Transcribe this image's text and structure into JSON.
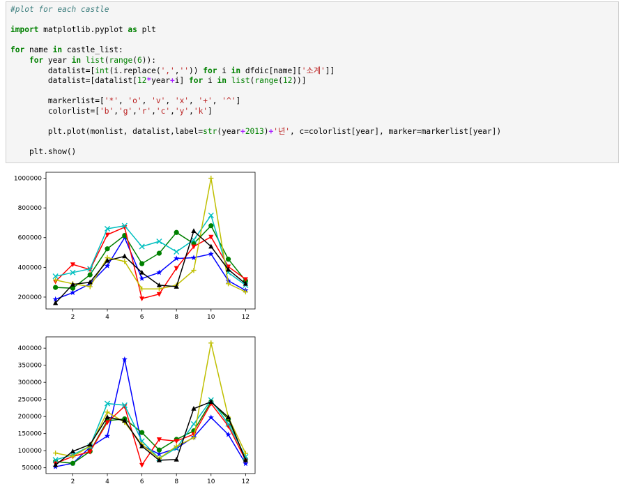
{
  "code_cell": {
    "lines": [
      [
        {
          "t": "#plot for each castle",
          "c": "cm"
        }
      ],
      [],
      [
        {
          "t": "import",
          "c": "kw"
        },
        {
          "t": " matplotlib.pyplot "
        },
        {
          "t": "as",
          "c": "kw"
        },
        {
          "t": " plt"
        }
      ],
      [],
      [
        {
          "t": "for",
          "c": "kw"
        },
        {
          "t": " name "
        },
        {
          "t": "in",
          "c": "kw"
        },
        {
          "t": " castle_list:"
        }
      ],
      [
        {
          "t": "    "
        },
        {
          "t": "for",
          "c": "kw"
        },
        {
          "t": " year "
        },
        {
          "t": "in",
          "c": "kw"
        },
        {
          "t": " "
        },
        {
          "t": "list",
          "c": "bi"
        },
        {
          "t": "("
        },
        {
          "t": "range",
          "c": "bi"
        },
        {
          "t": "("
        },
        {
          "t": "6",
          "c": "nm"
        },
        {
          "t": ")):"
        }
      ],
      [
        {
          "t": "        datalist=["
        },
        {
          "t": "int",
          "c": "bi"
        },
        {
          "t": "(i.replace("
        },
        {
          "t": "','",
          "c": "st"
        },
        {
          "t": ","
        },
        {
          "t": "''",
          "c": "st"
        },
        {
          "t": ")) "
        },
        {
          "t": "for",
          "c": "kw"
        },
        {
          "t": " i "
        },
        {
          "t": "in",
          "c": "kw"
        },
        {
          "t": " dfdic[name]["
        },
        {
          "t": "'소계'",
          "c": "st"
        },
        {
          "t": "]]"
        }
      ],
      [
        {
          "t": "        datalist=[datalist["
        },
        {
          "t": "12",
          "c": "nm"
        },
        {
          "t": "*",
          "c": "op"
        },
        {
          "t": "year"
        },
        {
          "t": "+",
          "c": "op"
        },
        {
          "t": "i] "
        },
        {
          "t": "for",
          "c": "kw"
        },
        {
          "t": " i "
        },
        {
          "t": "in",
          "c": "kw"
        },
        {
          "t": " "
        },
        {
          "t": "list",
          "c": "bi"
        },
        {
          "t": "("
        },
        {
          "t": "range",
          "c": "bi"
        },
        {
          "t": "("
        },
        {
          "t": "12",
          "c": "nm"
        },
        {
          "t": "))]"
        }
      ],
      [],
      [
        {
          "t": "        markerlist=["
        },
        {
          "t": "'*'",
          "c": "st"
        },
        {
          "t": ", "
        },
        {
          "t": "'o'",
          "c": "st"
        },
        {
          "t": ", "
        },
        {
          "t": "'v'",
          "c": "st"
        },
        {
          "t": ", "
        },
        {
          "t": "'x'",
          "c": "st"
        },
        {
          "t": ", "
        },
        {
          "t": "'+'",
          "c": "st"
        },
        {
          "t": ", "
        },
        {
          "t": "'^'",
          "c": "st"
        },
        {
          "t": "]"
        }
      ],
      [
        {
          "t": "        colorlist=["
        },
        {
          "t": "'b'",
          "c": "st"
        },
        {
          "t": ","
        },
        {
          "t": "'g'",
          "c": "st"
        },
        {
          "t": ","
        },
        {
          "t": "'r'",
          "c": "st"
        },
        {
          "t": ","
        },
        {
          "t": "'c'",
          "c": "st"
        },
        {
          "t": ","
        },
        {
          "t": "'y'",
          "c": "st"
        },
        {
          "t": ","
        },
        {
          "t": "'k'",
          "c": "st"
        },
        {
          "t": "]"
        }
      ],
      [],
      [
        {
          "t": "        plt.plot(monlist, datalist,label="
        },
        {
          "t": "str",
          "c": "bi"
        },
        {
          "t": "(year"
        },
        {
          "t": "+",
          "c": "op"
        },
        {
          "t": "2013",
          "c": "nm"
        },
        {
          "t": ")"
        },
        {
          "t": "+",
          "c": "op"
        },
        {
          "t": "'년'",
          "c": "st"
        },
        {
          "t": ", c=colorlist[year], marker=markerlist[year])"
        }
      ],
      [],
      [
        {
          "t": "    plt.show()"
        }
      ]
    ]
  },
  "colors": {
    "b": "#0000ff",
    "g": "#008000",
    "r": "#ff0000",
    "c": "#00bfbf",
    "y": "#bfbf00",
    "k": "#000000"
  },
  "chart_data": [
    {
      "type": "line",
      "x": [
        1,
        2,
        3,
        4,
        5,
        6,
        7,
        8,
        9,
        10,
        11,
        12
      ],
      "xticks": [
        2,
        4,
        6,
        8,
        10,
        12
      ],
      "yticks": [
        200000,
        400000,
        600000,
        800000,
        1000000
      ],
      "ytick_labels": [
        "200000",
        "400000",
        "600000",
        "800000",
        "1000000"
      ],
      "xlim": [
        0.45,
        12.55
      ],
      "ylim": [
        120000,
        1040000
      ],
      "series": [
        {
          "color": "b",
          "marker": "*",
          "values": [
            185000,
            230000,
            290000,
            410000,
            600000,
            325000,
            365000,
            460000,
            465000,
            490000,
            310000,
            245000
          ]
        },
        {
          "color": "g",
          "marker": "o",
          "values": [
            265000,
            260000,
            350000,
            525000,
            615000,
            425000,
            495000,
            635000,
            560000,
            680000,
            455000,
            310000
          ]
        },
        {
          "color": "r",
          "marker": "v",
          "values": [
            305000,
            420000,
            385000,
            620000,
            670000,
            190000,
            220000,
            395000,
            540000,
            605000,
            405000,
            320000
          ]
        },
        {
          "color": "c",
          "marker": "x",
          "values": [
            340000,
            365000,
            390000,
            660000,
            680000,
            540000,
            575000,
            505000,
            585000,
            750000,
            365000,
            280000
          ]
        },
        {
          "color": "y",
          "marker": "+",
          "values": [
            315000,
            290000,
            270000,
            465000,
            440000,
            255000,
            255000,
            280000,
            380000,
            1000000,
            290000,
            235000
          ]
        },
        {
          "color": "k",
          "marker": "^",
          "values": [
            160000,
            285000,
            300000,
            445000,
            475000,
            365000,
            280000,
            270000,
            645000,
            540000,
            385000,
            290000
          ]
        }
      ]
    },
    {
      "type": "line",
      "x": [
        1,
        2,
        3,
        4,
        5,
        6,
        7,
        8,
        9,
        10,
        11,
        12
      ],
      "xticks": [
        2,
        4,
        6,
        8,
        10,
        12
      ],
      "yticks": [
        50000,
        100000,
        150000,
        200000,
        250000,
        300000,
        350000,
        400000
      ],
      "ytick_labels": [
        "50000",
        "100000",
        "150000",
        "200000",
        "250000",
        "300000",
        "350000",
        "400000"
      ],
      "xlim": [
        0.45,
        12.55
      ],
      "ylim": [
        33000,
        433000
      ],
      "series": [
        {
          "color": "b",
          "marker": "*",
          "values": [
            53000,
            63000,
            110000,
            143000,
            367000,
            115000,
            90000,
            107000,
            140000,
            197000,
            147000,
            62000
          ]
        },
        {
          "color": "g",
          "marker": "o",
          "values": [
            68000,
            63000,
            98000,
            188000,
            193000,
            153000,
            102000,
            133000,
            158000,
            243000,
            192000,
            75000
          ]
        },
        {
          "color": "r",
          "marker": "v",
          "values": [
            63000,
            83000,
            97000,
            183000,
            230000,
            58000,
            133000,
            128000,
            148000,
            238000,
            172000,
            72000
          ]
        },
        {
          "color": "c",
          "marker": "x",
          "values": [
            73000,
            88000,
            113000,
            238000,
            233000,
            128000,
            77000,
            108000,
            178000,
            248000,
            178000,
            82000
          ]
        },
        {
          "color": "y",
          "marker": "+",
          "values": [
            93000,
            83000,
            113000,
            213000,
            183000,
            118000,
            77000,
            113000,
            138000,
            415000,
            198000,
            92000
          ]
        },
        {
          "color": "k",
          "marker": "^",
          "values": [
            58000,
            98000,
            118000,
            198000,
            188000,
            113000,
            72000,
            74000,
            223000,
            243000,
            198000,
            72000
          ]
        }
      ]
    }
  ]
}
